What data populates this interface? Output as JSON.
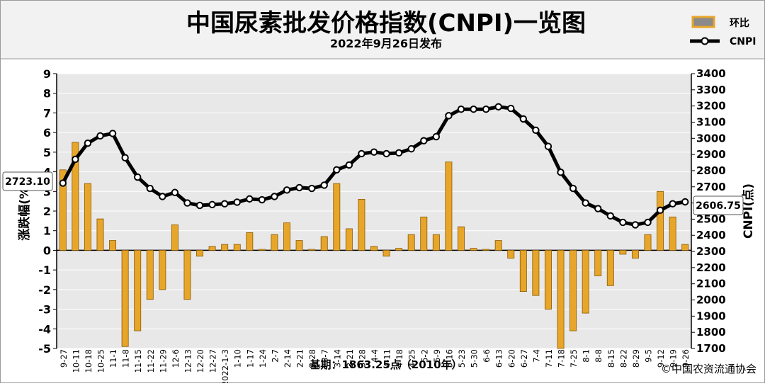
{
  "header": {
    "title": "中国尿素批发价格指数(CNPI)一览图",
    "subtitle": "2022年9月26日发布"
  },
  "legend": {
    "bar_label": "环比",
    "line_label": "CNPI"
  },
  "footer": {
    "base_note": "基期：1863.25点（2010年）",
    "copyright": "©中国农资流通协会"
  },
  "callouts": {
    "first_value": "2723.10",
    "last_value": "2606.75"
  },
  "colors": {
    "bar_fill": "#E7A52A",
    "bar_edge": "#8A5A00",
    "line": "#000000",
    "plot_bg": "#E8E8E8",
    "header_bg": "#F2F2F2"
  },
  "chart_data": {
    "type": "bar+line",
    "title": "中国尿素批发价格指数(CNPI)一览图",
    "subtitle": "2022年9月26日发布",
    "ylabel_left": "涨跌幅(%)",
    "ylabel_right": "CNPI(点)",
    "ylim_left": [
      -5,
      9
    ],
    "ylim_right": [
      1700,
      3400
    ],
    "yticks_left": [
      "9",
      "8",
      "7",
      "6",
      "5",
      "4",
      "3",
      "2",
      "1",
      "0",
      "-1",
      "-2",
      "-3",
      "-4",
      "-5"
    ],
    "yticks_right": [
      "3400",
      "3300",
      "3200",
      "3100",
      "3000",
      "2900",
      "2800",
      "2700",
      "2600",
      "2500",
      "2400",
      "2300",
      "2200",
      "2100",
      "2000",
      "1900",
      "1800",
      "1700"
    ],
    "grid": true,
    "legend_position": "top-right",
    "categories": [
      "9-27",
      "10-11",
      "10-18",
      "10-25",
      "11-1",
      "11-8",
      "11-15",
      "11-22",
      "11-29",
      "12-6",
      "12-13",
      "12-20",
      "12-27",
      "2022-1-3",
      "1-10",
      "1-17",
      "1-24",
      "2-7",
      "2-14",
      "2-21",
      "2-28",
      "3-7",
      "3-14",
      "3-21",
      "3-28",
      "4-4",
      "4-11",
      "4-18",
      "4-25",
      "5-2",
      "5-9",
      "5-16",
      "5-23",
      "5-30",
      "6-6",
      "6-13",
      "6-20",
      "6-27",
      "7-4",
      "7-11",
      "7-18",
      "7-25",
      "8-1",
      "8-8",
      "8-15",
      "8-22",
      "8-29",
      "9-5",
      "9-12",
      "9-19",
      "9-26"
    ],
    "series": [
      {
        "name": "环比",
        "kind": "bar",
        "axis": "left",
        "values": [
          4.1,
          5.5,
          3.4,
          1.6,
          0.5,
          -4.9,
          -4.1,
          -2.5,
          -2.0,
          1.3,
          -2.5,
          -0.3,
          0.2,
          0.3,
          0.3,
          0.9,
          0.05,
          0.8,
          1.4,
          0.5,
          0.05,
          0.7,
          3.4,
          1.1,
          2.6,
          0.2,
          -0.3,
          0.1,
          0.8,
          1.7,
          0.8,
          4.5,
          1.2,
          0.1,
          0.05,
          0.5,
          -0.4,
          -2.1,
          -2.3,
          -3.0,
          -5.0,
          -4.1,
          -3.2,
          -1.3,
          -1.8,
          -0.2,
          -0.4,
          0.8,
          3.0,
          1.7,
          0.3
        ]
      },
      {
        "name": "CNPI",
        "kind": "line",
        "axis": "right",
        "values": [
          2723,
          2870,
          2970,
          3015,
          3030,
          2880,
          2760,
          2690,
          2640,
          2665,
          2600,
          2585,
          2590,
          2595,
          2605,
          2625,
          2620,
          2640,
          2680,
          2695,
          2690,
          2710,
          2805,
          2835,
          2905,
          2915,
          2905,
          2910,
          2935,
          2985,
          3010,
          3140,
          3180,
          3180,
          3180,
          3195,
          3185,
          3120,
          3050,
          2950,
          2790,
          2690,
          2600,
          2565,
          2520,
          2480,
          2465,
          2480,
          2555,
          2595,
          2607
        ]
      }
    ]
  }
}
